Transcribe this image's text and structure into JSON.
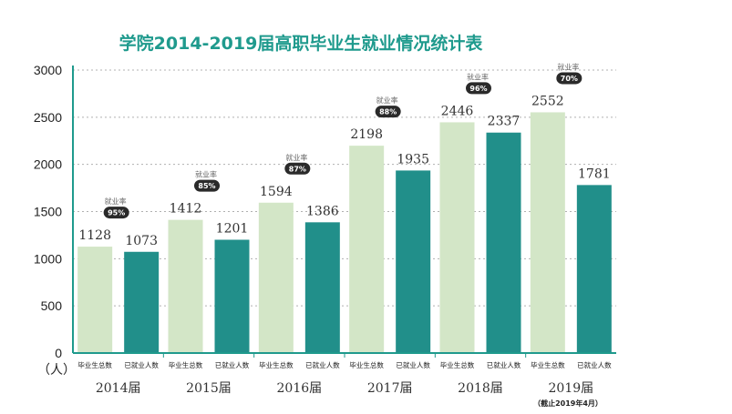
{
  "chart_data": {
    "type": "bar",
    "title": "学院2014-2019届高职毕业生就业情况统计表",
    "ylabel": "（人）",
    "ylim": [
      0,
      3000
    ],
    "yticks": [
      0,
      500,
      1000,
      1500,
      2000,
      2500,
      3000
    ],
    "categories": [
      "2014届",
      "2015届",
      "2016届",
      "2017届",
      "2018届",
      "2019届"
    ],
    "series": [
      {
        "name": "毕业生总数",
        "color": "#d3e6c7",
        "values": [
          1128,
          1412,
          1594,
          2198,
          2446,
          2552
        ]
      },
      {
        "name": "已就业人数",
        "color": "#218f8a",
        "values": [
          1073,
          1201,
          1386,
          1935,
          2337,
          1781
        ]
      }
    ],
    "rate_tag": "就业率",
    "rates": [
      "95%",
      "85%",
      "87%",
      "88%",
      "96%",
      "70%"
    ],
    "note": "（截止2019年4月）",
    "colors": {
      "title": "#1f9a8d",
      "axis": "#1f9a8d",
      "grid": "#b0b0b0",
      "pill": "#2a2a2a"
    }
  }
}
